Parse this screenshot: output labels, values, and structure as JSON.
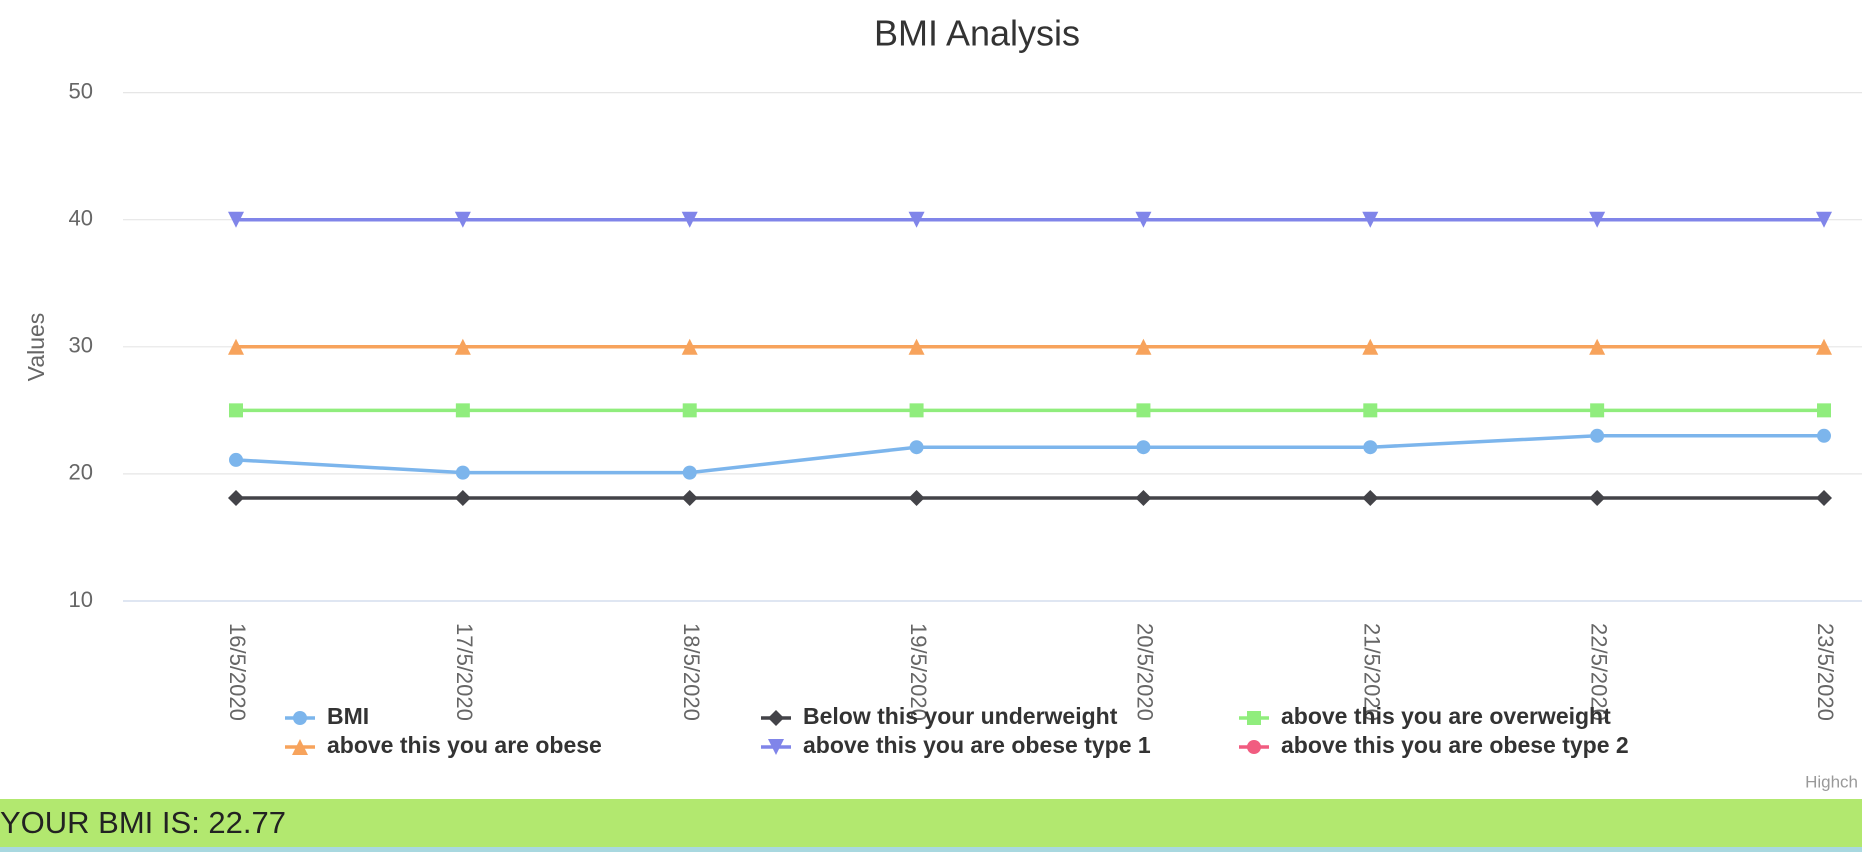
{
  "chart_data": {
    "type": "line",
    "title": "BMI Analysis",
    "y_label": "Values",
    "categories": [
      "16/5/2020",
      "17/5/2020",
      "18/5/2020",
      "19/5/2020",
      "20/5/2020",
      "21/5/2020",
      "22/5/2020",
      "23/5/2020"
    ],
    "series": [
      {
        "name": "BMI",
        "color": "#7cb5ec",
        "marker": "circle",
        "values": [
          21.1,
          20.1,
          20.1,
          22.1,
          22.1,
          22.1,
          23.0,
          23.0
        ]
      },
      {
        "name": "Below this your underweight",
        "color": "#434348",
        "marker": "diamond",
        "values": [
          18.1,
          18.1,
          18.1,
          18.1,
          18.1,
          18.1,
          18.1,
          18.1
        ]
      },
      {
        "name": "above this you are overweight",
        "color": "#90ed7d",
        "marker": "square",
        "values": [
          25,
          25,
          25,
          25,
          25,
          25,
          25,
          25
        ]
      },
      {
        "name": "above this you are obese",
        "color": "#f7a35c",
        "marker": "triangle",
        "values": [
          30,
          30,
          30,
          30,
          30,
          30,
          30,
          30
        ]
      },
      {
        "name": "above this you are obese type 1",
        "color": "#8085e9",
        "marker": "triangle-down",
        "values": [
          40,
          40,
          40,
          40,
          40,
          40,
          40,
          40
        ]
      },
      {
        "name": "above this you are obese type 2",
        "color": "#f15c80",
        "marker": "circle",
        "values": [
          null,
          null,
          null,
          null,
          null,
          null,
          null,
          null
        ]
      }
    ],
    "ylim": [
      10,
      50
    ],
    "yticks": [
      10,
      20,
      30,
      40,
      50
    ],
    "grid": true,
    "legend": "bottom",
    "credits": "Highch"
  },
  "bmi_banner": "YOUR BMI IS: 22.77"
}
